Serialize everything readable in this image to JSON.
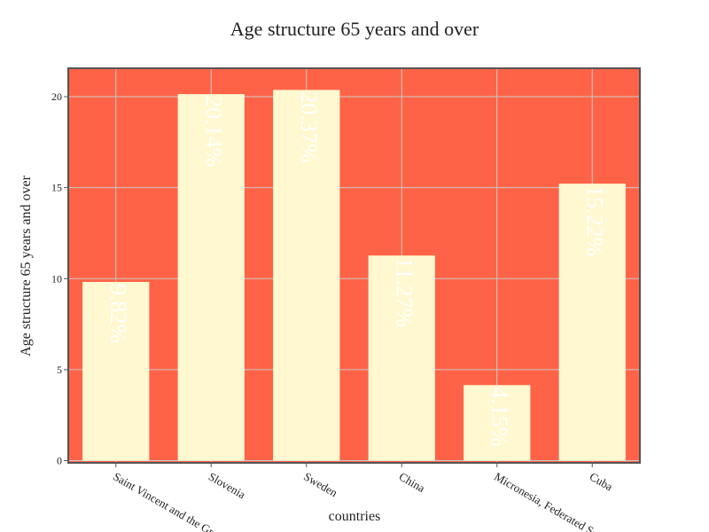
{
  "chart_data": {
    "type": "bar",
    "title": "Age structure 65 years and over",
    "xlabel": "countries",
    "ylabel": "Age structure 65 years and over",
    "categories": [
      "Saint Vincent and the Grenadines",
      "Slovenia",
      "Sweden",
      "China",
      "Micronesia, Federated States of",
      "Cuba"
    ],
    "values": [
      9.82,
      20.14,
      20.37,
      11.27,
      4.15,
      15.22
    ],
    "data_labels": [
      "9.82%",
      "20.14%",
      "20.37%",
      "11.27%",
      "4.15%",
      "15.22%"
    ],
    "ylim": [
      0,
      21.6
    ],
    "yticks": [
      0,
      5,
      10,
      15,
      20
    ],
    "grid": true,
    "colors": {
      "plot_background": "#ff6347",
      "bar_fill": "#fff8d0",
      "data_label": "#ffffff",
      "grid": "#c8c8c8",
      "frame": "#555555",
      "text": "#222222"
    }
  }
}
